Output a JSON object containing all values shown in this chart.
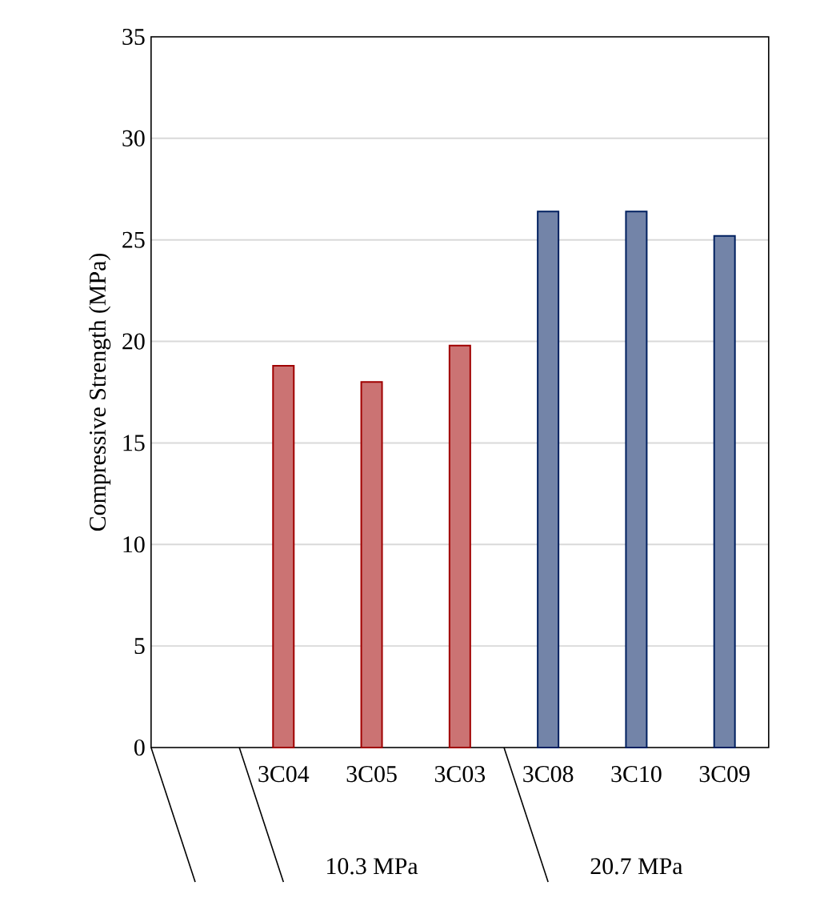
{
  "chart_data": {
    "type": "bar",
    "ylabel": "Compressive Strength (MPa)",
    "categories": [
      null,
      "3C04",
      "3C05",
      "3C03",
      "3C08",
      "3C10",
      "3C09"
    ],
    "values": [
      null,
      18.8,
      18.0,
      19.8,
      26.4,
      26.4,
      25.2
    ],
    "colors": [
      "#a00000",
      "#a00000",
      "#a00000",
      "#a00000",
      "#002060",
      "#002060",
      "#002060"
    ],
    "ylim": [
      0,
      35
    ],
    "yticks": [
      0,
      5,
      10,
      15,
      20,
      25,
      30,
      35
    ],
    "grid": "y",
    "annotations": [
      "10.3 MPa",
      "20.7 MPa"
    ]
  }
}
